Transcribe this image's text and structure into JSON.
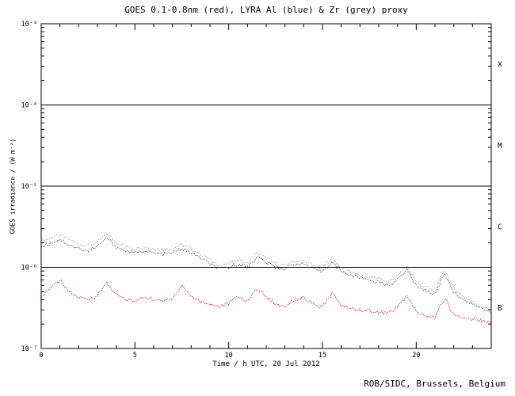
{
  "footer": {
    "credit": "ROB/SIDC, Brussels, Belgium"
  },
  "chart_data": {
    "type": "line",
    "title": "GOES 0.1-0.8nm (red), LYRA Al (blue) & Zr (grey) proxy",
    "xlabel": "Time / h UTC, 20 Jul 2012",
    "ylabel": "GOES irradiance / (W m⁻²)",
    "xlim": [
      0,
      24
    ],
    "log_range": [
      -7,
      -3
    ],
    "grid": false,
    "legend_position": "none",
    "x_major_ticks": [
      0,
      5,
      10,
      15,
      20
    ],
    "x_minor_step": 1,
    "y_decade_labels": [
      {
        "log": -3,
        "label": "10⁻³"
      },
      {
        "log": -4,
        "label": "10⁻⁴"
      },
      {
        "log": -5,
        "label": "10⁻⁵"
      },
      {
        "log": -6,
        "label": "10⁻⁶"
      },
      {
        "log": -7,
        "label": "10⁻⁷"
      }
    ],
    "threshold_lines_log": [
      -4,
      -5,
      -6
    ],
    "flare_classes": [
      {
        "label": "X",
        "log_mid": -3.5
      },
      {
        "label": "M",
        "log_mid": -4.5
      },
      {
        "label": "C",
        "log_mid": -5.5
      },
      {
        "label": "B",
        "log_mid": -6.5
      }
    ],
    "x": [
      0,
      0.5,
      1,
      1.5,
      2,
      2.5,
      3,
      3.5,
      4,
      4.5,
      5,
      5.5,
      6,
      6.5,
      7,
      7.5,
      8,
      8.5,
      9,
      9.5,
      10,
      10.5,
      11,
      11.5,
      12,
      12.5,
      13,
      13.5,
      14,
      14.5,
      15,
      15.5,
      16,
      16.5,
      17,
      17.5,
      18,
      18.5,
      19,
      19.5,
      20,
      20.5,
      21,
      21.5,
      22,
      22.5,
      23,
      23.5,
      24
    ],
    "series": [
      {
        "name": "LYRA Zr proxy",
        "color": "#9a9a9a",
        "y": [
          2.1e-06,
          2.3e-06,
          2.5e-06,
          2.2e-06,
          1.95e-06,
          1.85e-06,
          2.05e-06,
          2.6e-06,
          2.05e-06,
          1.8e-06,
          1.7e-06,
          1.8e-06,
          1.7e-06,
          1.65e-06,
          1.7e-06,
          1.9e-06,
          1.7e-06,
          1.45e-06,
          1.25e-06,
          1.05e-06,
          1.1e-06,
          1.25e-06,
          1.1e-06,
          1.5e-06,
          1.3e-06,
          1.1e-06,
          1.05e-06,
          1.2e-06,
          1.2e-06,
          1.05e-06,
          1e-06,
          1.3e-06,
          1e-06,
          8.8e-07,
          8.2e-07,
          7.7e-07,
          7.2e-07,
          6.6e-07,
          7.8e-07,
          1.05e-06,
          6.6e-07,
          5.7e-07,
          5e-07,
          9.5e-07,
          5.5e-07,
          4.4e-07,
          3.8e-07,
          3.3e-07,
          3e-07
        ]
      },
      {
        "name": "LYRA Al proxy",
        "color": "#2a2ab0",
        "y": [
          1.8e-06,
          2e-06,
          2.2e-06,
          1.9e-06,
          1.7e-06,
          1.6e-06,
          1.8e-06,
          2.3e-06,
          1.8e-06,
          1.6e-06,
          1.5e-06,
          1.6e-06,
          1.5e-06,
          1.45e-06,
          1.5e-06,
          1.7e-06,
          1.5e-06,
          1.3e-06,
          1.1e-06,
          9.5e-07,
          1e-06,
          1.1e-06,
          1e-06,
          1.35e-06,
          1.15e-06,
          1e-06,
          9.5e-07,
          1.1e-06,
          1.1e-06,
          9.5e-07,
          9e-07,
          1.15e-06,
          9e-07,
          8e-07,
          7.5e-07,
          7e-07,
          6.5e-07,
          6e-07,
          7e-07,
          9.5e-07,
          6e-07,
          5.2e-07,
          4.6e-07,
          8.5e-07,
          5e-07,
          4e-07,
          3.5e-07,
          3.1e-07,
          2.8e-07
        ]
      },
      {
        "name": "GOES 0.1-0.8nm",
        "color": "#cc0000",
        "y": [
          4.5e-07,
          5.5e-07,
          7e-07,
          5e-07,
          4.2e-07,
          4e-07,
          4.5e-07,
          6.5e-07,
          4.6e-07,
          4e-07,
          3.8e-07,
          4.3e-07,
          4e-07,
          3.8e-07,
          4.2e-07,
          6e-07,
          4.4e-07,
          3.8e-07,
          3.5e-07,
          3.3e-07,
          3.6e-07,
          4.4e-07,
          3.8e-07,
          5.5e-07,
          4.4e-07,
          3.5e-07,
          3.3e-07,
          4e-07,
          4.2e-07,
          3.5e-07,
          3.2e-07,
          4.8e-07,
          3.4e-07,
          3.1e-07,
          3e-07,
          2.9e-07,
          2.8e-07,
          2.7e-07,
          3.2e-07,
          4.5e-07,
          2.8e-07,
          2.5e-07,
          2.4e-07,
          4.2e-07,
          2.6e-07,
          2.4e-07,
          2.3e-07,
          2.2e-07,
          2.1e-07
        ]
      }
    ]
  }
}
